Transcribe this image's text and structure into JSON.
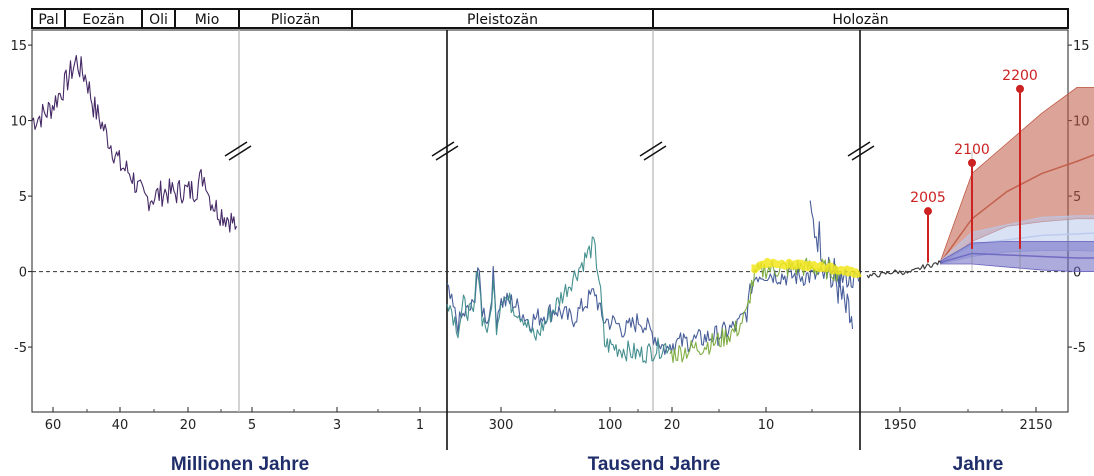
{
  "chart_data": {
    "type": "line",
    "title": "",
    "y_ticks": [
      15,
      10,
      5,
      0,
      -5
    ],
    "ylim": [
      -9.3,
      16
    ],
    "zero_line": "dashed",
    "epochs": [
      "Pal",
      "Eozän",
      "Oli",
      "Mio",
      "Pliozän",
      "Pleistozän",
      "Holozän"
    ],
    "panels": [
      {
        "name": "Millionen Jahre",
        "x_ticks": [
          "60",
          "40",
          "20",
          "5",
          "3",
          "1"
        ]
      },
      {
        "name": "Tausend Jahre",
        "x_ticks": [
          "300",
          "100",
          "20",
          "10"
        ]
      },
      {
        "name": "Jahre",
        "x_ticks": [
          "1950",
          "2150"
        ]
      }
    ],
    "series": [
      {
        "color": "#3b1f5e",
        "points": [
          [
            66,
            10
          ],
          [
            62,
            10.5
          ],
          [
            60,
            11
          ],
          [
            56,
            12.5
          ],
          [
            53,
            14
          ],
          [
            52,
            13.5
          ],
          [
            50,
            12.8
          ],
          [
            48,
            11
          ],
          [
            45,
            9.5
          ],
          [
            42,
            8
          ],
          [
            40,
            7
          ],
          [
            37,
            6.5
          ],
          [
            35,
            5.5
          ],
          [
            33,
            4.8
          ],
          [
            30,
            5
          ],
          [
            27,
            5.3
          ],
          [
            24,
            5.2
          ],
          [
            22,
            5.4
          ],
          [
            20,
            5.3
          ],
          [
            18,
            5.5
          ],
          [
            16,
            6.3
          ],
          [
            15,
            6.2
          ],
          [
            14,
            5
          ],
          [
            12,
            4.2
          ],
          [
            10,
            3.8
          ],
          [
            8,
            3.5
          ],
          [
            6,
            3
          ]
        ]
      },
      {
        "color": "#3e5594",
        "points": [
          [
            5.3,
            3.5
          ],
          [
            4.5,
            2.5
          ],
          [
            4,
            1.7
          ],
          [
            3.5,
            0.9
          ],
          [
            3,
            0.2
          ],
          [
            2.6,
            -0.5
          ],
          [
            2.2,
            -1.3
          ],
          [
            1.8,
            -2.1
          ],
          [
            1.5,
            -2.6
          ],
          [
            1.2,
            -3
          ],
          [
            1,
            -3.3
          ],
          [
            0.8,
            -3.8
          ]
        ]
      },
      {
        "color": "#3e5594",
        "points": [
          [
            800,
            -1.2
          ],
          [
            700,
            -3.5
          ],
          [
            640,
            -2.8
          ],
          [
            560,
            -2.3
          ],
          [
            520,
            0.3
          ],
          [
            480,
            -2.5
          ],
          [
            420,
            -3.2
          ],
          [
            380,
            -0.3
          ],
          [
            350,
            -3.1
          ],
          [
            320,
            -2
          ],
          [
            280,
            -2
          ],
          [
            250,
            -3.3
          ],
          [
            200,
            -2.5
          ],
          [
            170,
            -3.2
          ],
          [
            128,
            -1.3
          ],
          [
            115,
            -3.1
          ],
          [
            90,
            -3.5
          ],
          [
            80,
            -3.9
          ],
          [
            60,
            -3.2
          ],
          [
            40,
            -4.3
          ],
          [
            25,
            -5.2
          ],
          [
            20,
            -5.1
          ]
        ]
      },
      {
        "color": "#3c8a8a",
        "points": [
          [
            800,
            -1.6
          ],
          [
            700,
            -3.8
          ],
          [
            650,
            -2.2
          ],
          [
            560,
            -3
          ],
          [
            520,
            0.6
          ],
          [
            480,
            -3
          ],
          [
            420,
            -4
          ],
          [
            380,
            -0.8
          ],
          [
            350,
            -3.5
          ],
          [
            300,
            -1.5
          ],
          [
            260,
            -3
          ],
          [
            240,
            -4.5
          ],
          [
            210,
            -2.8
          ],
          [
            130,
            1.8
          ],
          [
            120,
            -0.5
          ],
          [
            110,
            -4.8
          ],
          [
            100,
            -4.9
          ],
          [
            60,
            -5.5
          ],
          [
            30,
            -5
          ],
          [
            20,
            -4.8
          ]
        ]
      },
      {
        "color": "#3e5594",
        "points": [
          [
            20,
            -4.8
          ],
          [
            17,
            -4.5
          ],
          [
            15,
            -4.2
          ],
          [
            13,
            -3.6
          ],
          [
            12,
            -2.7
          ],
          [
            11.5,
            -0.9
          ],
          [
            11,
            -0.2
          ],
          [
            10,
            -0.1
          ],
          [
            8,
            -0.3
          ],
          [
            6,
            -0.3
          ],
          [
            4,
            -0.3
          ],
          [
            2,
            -0.4
          ],
          [
            0,
            -0.6
          ]
        ]
      },
      {
        "color": "#7aaa3a",
        "points": [
          [
            20,
            -5.5
          ],
          [
            17,
            -5
          ],
          [
            15,
            -4.6
          ],
          [
            13,
            -3.8
          ],
          [
            12,
            -2.8
          ],
          [
            11.5,
            -0.9
          ],
          [
            11,
            -0.2
          ],
          [
            10,
            0.2
          ],
          [
            8,
            0.2
          ],
          [
            6,
            0.3
          ],
          [
            4,
            0.2
          ],
          [
            2,
            0
          ]
        ]
      },
      {
        "color": "#f2e61c",
        "points": [
          [
            11.5,
            0.1
          ],
          [
            11,
            0.3
          ],
          [
            10,
            0.6
          ],
          [
            8,
            0.5
          ],
          [
            6,
            0.4
          ],
          [
            4,
            0.3
          ],
          [
            2,
            0.1
          ],
          [
            0,
            -0.1
          ]
        ]
      },
      {
        "color": "#333333",
        "points": [
          [
            1900,
            -0.3
          ],
          [
            1920,
            -0.2
          ],
          [
            1940,
            0
          ],
          [
            1960,
            -0.1
          ],
          [
            1980,
            0.3
          ],
          [
            2005,
            0.6
          ]
        ]
      }
    ],
    "scenarios": [
      {
        "color": "#c05a45",
        "mean": [
          [
            2005,
            0.6
          ],
          [
            2050,
            3.5
          ],
          [
            2100,
            5.3
          ],
          [
            2150,
            6.5
          ],
          [
            2200,
            7.3
          ],
          [
            2250,
            8.2
          ]
        ],
        "upper": [
          [
            2005,
            0.7
          ],
          [
            2050,
            6.5
          ],
          [
            2100,
            8.5
          ],
          [
            2150,
            10.5
          ],
          [
            2200,
            12.2
          ],
          [
            2250,
            12.2
          ]
        ],
        "lower": [
          [
            2005,
            0.5
          ],
          [
            2050,
            2
          ],
          [
            2100,
            3
          ],
          [
            2150,
            3.3
          ],
          [
            2200,
            3.5
          ],
          [
            2250,
            3.5
          ]
        ]
      },
      {
        "color": "#b9c9ec",
        "mean": [
          [
            2005,
            0.6
          ],
          [
            2050,
            1.8
          ],
          [
            2100,
            2.1
          ],
          [
            2150,
            2.4
          ],
          [
            2200,
            2.5
          ],
          [
            2250,
            2.6
          ]
        ],
        "upper": [
          [
            2005,
            0.7
          ],
          [
            2050,
            2.6
          ],
          [
            2100,
            3.1
          ],
          [
            2150,
            3.6
          ],
          [
            2200,
            3.7
          ],
          [
            2250,
            3.7
          ]
        ],
        "lower": [
          [
            2005,
            0.5
          ],
          [
            2050,
            1
          ],
          [
            2100,
            1.3
          ],
          [
            2150,
            1.4
          ],
          [
            2200,
            1.4
          ],
          [
            2250,
            1.3
          ]
        ]
      },
      {
        "color": "#6a65c0",
        "mean": [
          [
            2005,
            0.6
          ],
          [
            2050,
            1.2
          ],
          [
            2100,
            1.1
          ],
          [
            2150,
            1
          ],
          [
            2200,
            0.9
          ],
          [
            2250,
            0.9
          ]
        ],
        "upper": [
          [
            2005,
            0.7
          ],
          [
            2050,
            1.9
          ],
          [
            2100,
            2
          ],
          [
            2150,
            2
          ],
          [
            2200,
            2
          ],
          [
            2250,
            2
          ]
        ],
        "lower": [
          [
            2005,
            0.5
          ],
          [
            2050,
            0.5
          ],
          [
            2100,
            0.3
          ],
          [
            2150,
            0.1
          ],
          [
            2200,
            0
          ],
          [
            2250,
            0
          ]
        ]
      }
    ],
    "markers": [
      {
        "year": "2005",
        "value": 4
      },
      {
        "year": "2100",
        "value": 7.2
      },
      {
        "year": "2200",
        "value": 12.1
      }
    ]
  }
}
